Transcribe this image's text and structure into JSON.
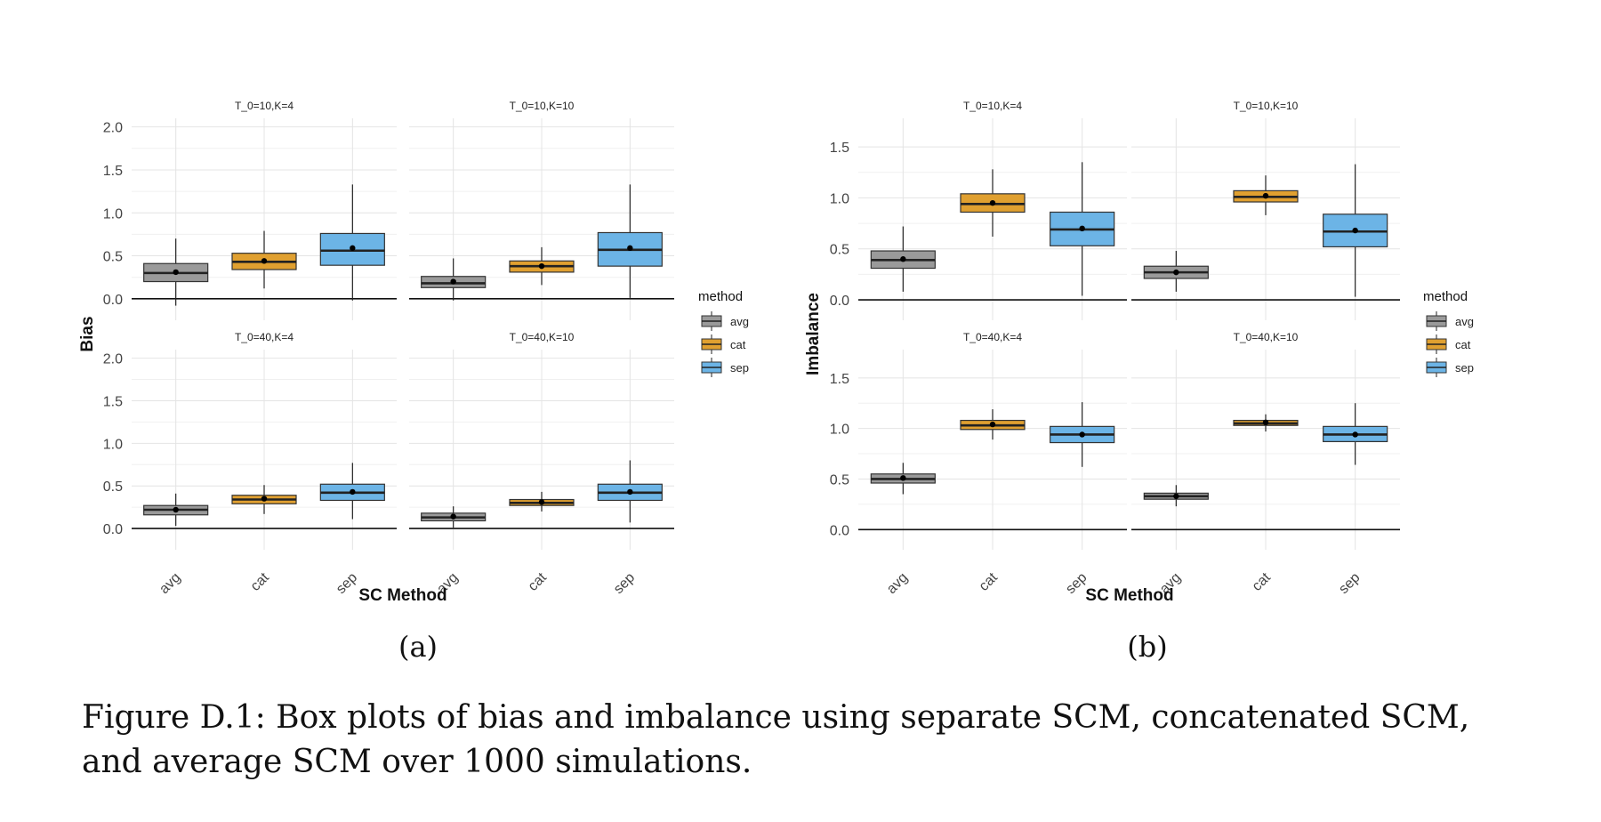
{
  "figure": {
    "caption": "Figure D.1: Box plots of bias and imbalance using separate SCM, concatenated SCM, and average SCM over 1000 simulations."
  },
  "chart_data": [
    {
      "type": "box",
      "sublabel": "(a)",
      "ylabel": "Bias",
      "xlabel": "SC Method",
      "legend_title": "method",
      "legend_position": "right",
      "categories": [
        "avg",
        "cat",
        "sep"
      ],
      "colors": {
        "avg": "#9a9a9a",
        "cat": "#e0a030",
        "sep": "#6cb4e6"
      },
      "yticks": [
        0.0,
        0.5,
        1.0,
        1.5,
        2.0
      ],
      "ylim": [
        -0.25,
        2.1
      ],
      "panels": [
        {
          "title": "T_0=10,K=4",
          "boxes": [
            {
              "cat": "avg",
              "min": -0.08,
              "q1": 0.2,
              "median": 0.3,
              "q3": 0.41,
              "max": 0.7,
              "mean": 0.31
            },
            {
              "cat": "cat",
              "min": 0.12,
              "q1": 0.34,
              "median": 0.43,
              "q3": 0.53,
              "max": 0.79,
              "mean": 0.44
            },
            {
              "cat": "sep",
              "min": -0.02,
              "q1": 0.39,
              "median": 0.56,
              "q3": 0.76,
              "max": 1.33,
              "mean": 0.59
            }
          ]
        },
        {
          "title": "T_0=10,K=10",
          "boxes": [
            {
              "cat": "avg",
              "min": -0.02,
              "q1": 0.13,
              "median": 0.18,
              "q3": 0.26,
              "max": 0.47,
              "mean": 0.2
            },
            {
              "cat": "cat",
              "min": 0.16,
              "q1": 0.31,
              "median": 0.38,
              "q3": 0.44,
              "max": 0.6,
              "mean": 0.38
            },
            {
              "cat": "sep",
              "min": 0.01,
              "q1": 0.38,
              "median": 0.57,
              "q3": 0.77,
              "max": 1.33,
              "mean": 0.59
            }
          ]
        },
        {
          "title": "T_0=40,K=4",
          "boxes": [
            {
              "cat": "avg",
              "min": 0.03,
              "q1": 0.16,
              "median": 0.22,
              "q3": 0.27,
              "max": 0.41,
              "mean": 0.22
            },
            {
              "cat": "cat",
              "min": 0.17,
              "q1": 0.29,
              "median": 0.34,
              "q3": 0.39,
              "max": 0.51,
              "mean": 0.35
            },
            {
              "cat": "sep",
              "min": 0.11,
              "q1": 0.33,
              "median": 0.42,
              "q3": 0.52,
              "max": 0.77,
              "mean": 0.43
            }
          ]
        },
        {
          "title": "T_0=40,K=10",
          "boxes": [
            {
              "cat": "avg",
              "min": 0.01,
              "q1": 0.09,
              "median": 0.13,
              "q3": 0.18,
              "max": 0.26,
              "mean": 0.14
            },
            {
              "cat": "cat",
              "min": 0.2,
              "q1": 0.27,
              "median": 0.3,
              "q3": 0.34,
              "max": 0.43,
              "mean": 0.31
            },
            {
              "cat": "sep",
              "min": 0.07,
              "q1": 0.33,
              "median": 0.42,
              "q3": 0.52,
              "max": 0.8,
              "mean": 0.43
            }
          ]
        }
      ]
    },
    {
      "type": "box",
      "sublabel": "(b)",
      "ylabel": "Imbalance",
      "xlabel": "SC Method",
      "legend_title": "method",
      "legend_position": "right",
      "categories": [
        "avg",
        "cat",
        "sep"
      ],
      "colors": {
        "avg": "#9a9a9a",
        "cat": "#e0a030",
        "sep": "#6cb4e6"
      },
      "yticks": [
        0.0,
        0.5,
        1.0,
        1.5
      ],
      "ylim": [
        -0.2,
        1.78
      ],
      "panels": [
        {
          "title": "T_0=10,K=4",
          "boxes": [
            {
              "cat": "avg",
              "min": 0.08,
              "q1": 0.31,
              "median": 0.39,
              "q3": 0.48,
              "max": 0.72,
              "mean": 0.4
            },
            {
              "cat": "cat",
              "min": 0.62,
              "q1": 0.86,
              "median": 0.94,
              "q3": 1.04,
              "max": 1.28,
              "mean": 0.95
            },
            {
              "cat": "sep",
              "min": 0.04,
              "q1": 0.53,
              "median": 0.69,
              "q3": 0.86,
              "max": 1.35,
              "mean": 0.7
            }
          ]
        },
        {
          "title": "T_0=10,K=10",
          "boxes": [
            {
              "cat": "avg",
              "min": 0.08,
              "q1": 0.21,
              "median": 0.27,
              "q3": 0.33,
              "max": 0.48,
              "mean": 0.27
            },
            {
              "cat": "cat",
              "min": 0.83,
              "q1": 0.96,
              "median": 1.01,
              "q3": 1.07,
              "max": 1.22,
              "mean": 1.02
            },
            {
              "cat": "sep",
              "min": 0.03,
              "q1": 0.52,
              "median": 0.67,
              "q3": 0.84,
              "max": 1.33,
              "mean": 0.68
            }
          ]
        },
        {
          "title": "T_0=40,K=4",
          "boxes": [
            {
              "cat": "avg",
              "min": 0.35,
              "q1": 0.46,
              "median": 0.5,
              "q3": 0.55,
              "max": 0.66,
              "mean": 0.51
            },
            {
              "cat": "cat",
              "min": 0.89,
              "q1": 0.99,
              "median": 1.03,
              "q3": 1.08,
              "max": 1.19,
              "mean": 1.04
            },
            {
              "cat": "sep",
              "min": 0.62,
              "q1": 0.86,
              "median": 0.94,
              "q3": 1.02,
              "max": 1.26,
              "mean": 0.94
            }
          ]
        },
        {
          "title": "T_0=40,K=10",
          "boxes": [
            {
              "cat": "avg",
              "min": 0.23,
              "q1": 0.3,
              "median": 0.33,
              "q3": 0.36,
              "max": 0.44,
              "mean": 0.33
            },
            {
              "cat": "cat",
              "min": 0.97,
              "q1": 1.03,
              "median": 1.05,
              "q3": 1.08,
              "max": 1.14,
              "mean": 1.06
            },
            {
              "cat": "sep",
              "min": 0.64,
              "q1": 0.87,
              "median": 0.94,
              "q3": 1.02,
              "max": 1.25,
              "mean": 0.94
            }
          ]
        }
      ]
    }
  ]
}
